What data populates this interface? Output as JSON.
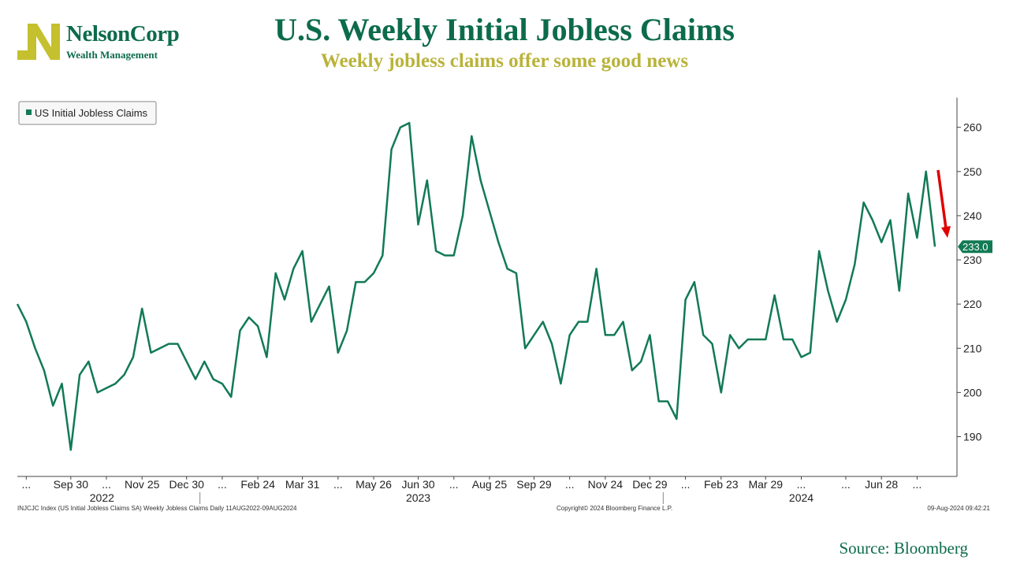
{
  "header": {
    "title": "U.S. Weekly Initial Jobless Claims",
    "subtitle": "Weekly jobless claims offer some good news"
  },
  "logo": {
    "name": "NelsonCorp",
    "tagline": "Wealth Management",
    "mark_color": "#c5c02e",
    "text_color": "#0c6b4a"
  },
  "source": "Source: Bloomberg",
  "footer": {
    "left": "INJCJC Index (US Initial Jobless Claims SA) Weekly Jobless Claims  Daily 11AUG2022-09AUG2024",
    "center": "Copyright© 2024 Bloomberg Finance L.P.",
    "right": "09-Aug-2024 09:42:21"
  },
  "colors": {
    "line": "#127a55",
    "arrow": "#e00000",
    "title": "#0c6b4a",
    "subtitle": "#b9b33a"
  },
  "chart_data": {
    "type": "line",
    "title": "U.S. Weekly Initial Jobless Claims",
    "subtitle": "Weekly jobless claims offer some good news",
    "legend": {
      "position": "top-left",
      "entries": [
        "US Initial Jobless Claims"
      ]
    },
    "grid": false,
    "ylim": [
      181,
      266
    ],
    "yticks": [
      190,
      200,
      210,
      220,
      230,
      240,
      250,
      260
    ],
    "y_axis_side": "right",
    "x_tick_labels": [
      "...",
      "Sep 30",
      "...",
      "Nov 25",
      "Dec 30",
      "...",
      "Feb 24",
      "Mar 31",
      "...",
      "May 26",
      "Jun 30",
      "...",
      "Aug 25",
      "Sep 29",
      "...",
      "Nov 24",
      "Dec 29",
      "...",
      "Feb 23",
      "Mar 29",
      "...",
      "...",
      "Jun 28",
      "..."
    ],
    "x_tick_weeks": [
      1,
      6,
      10,
      14,
      19,
      23,
      27,
      32,
      36,
      40,
      45,
      49,
      53,
      58,
      62,
      66,
      71,
      75,
      79,
      84,
      88,
      93,
      97,
      101
    ],
    "year_labels": [
      {
        "label": "2022",
        "week": 9.5
      },
      {
        "label": "2023",
        "week": 45
      },
      {
        "label": "2024",
        "week": 88
      }
    ],
    "year_dividers": [
      20.5,
      72.5
    ],
    "last_value_label": "233.0",
    "series": [
      {
        "name": "US Initial Jobless Claims",
        "start_week": "2022-08-13",
        "values": [
          220,
          216,
          210,
          205,
          197,
          202,
          187,
          204,
          207,
          200,
          201,
          202,
          204,
          208,
          219,
          209,
          210,
          211,
          211,
          207,
          203,
          207,
          203,
          202,
          199,
          214,
          217,
          215,
          208,
          227,
          221,
          228,
          232,
          216,
          220,
          224,
          209,
          214,
          225,
          225,
          227,
          231,
          255,
          260,
          261,
          238,
          248,
          232,
          231,
          231,
          240,
          258,
          248,
          241,
          234,
          228,
          227,
          210,
          213,
          216,
          211,
          202,
          213,
          216,
          216,
          228,
          213,
          213,
          216,
          205,
          207,
          213,
          198,
          198,
          194,
          221,
          225,
          213,
          211,
          200,
          213,
          210,
          212,
          212,
          212,
          222,
          212,
          212,
          208,
          209,
          232,
          223,
          216,
          221,
          229,
          243,
          239,
          234,
          239,
          223,
          245,
          235,
          250,
          233
        ]
      }
    ]
  }
}
